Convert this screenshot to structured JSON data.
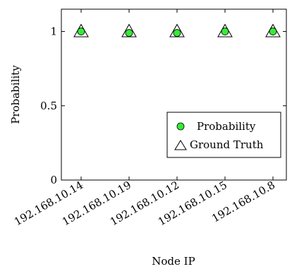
{
  "chart_data": {
    "type": "scatter",
    "xlabel": "Node IP",
    "ylabel": "Probability",
    "categories": [
      "192.168.10.14",
      "192.168.10.19",
      "192.168.10.12",
      "192.168.10.15",
      "192.168.10.8"
    ],
    "ylim": [
      0,
      1.15
    ],
    "yticks": [
      0,
      0.5,
      1
    ],
    "ytick_labels": [
      "0",
      "0.5",
      "1"
    ],
    "series": [
      {
        "name": "Probability",
        "marker": "circle",
        "color": "#33ee33",
        "values": [
          1.0,
          0.99,
          0.99,
          1.0,
          1.0
        ]
      },
      {
        "name": "Ground Truth",
        "marker": "triangle",
        "color": "#ffffff",
        "values": [
          1,
          1,
          1,
          1,
          1
        ]
      }
    ],
    "legend_position": "lower-right",
    "grid": false
  }
}
